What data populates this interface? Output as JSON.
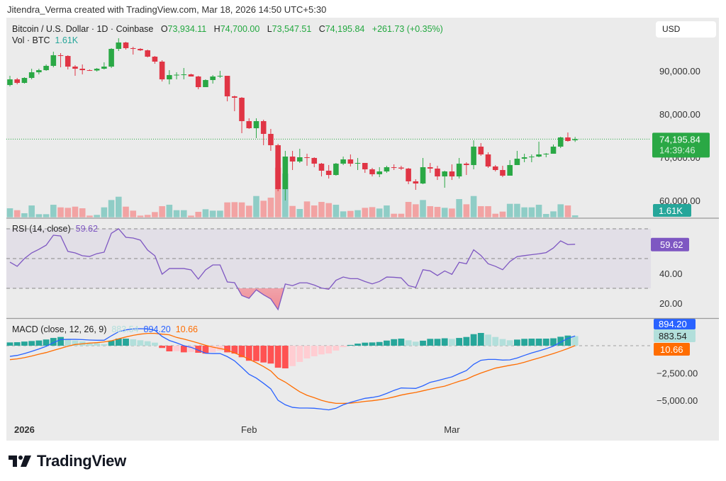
{
  "header": {
    "attribution": "Jitendra_Verma created with TradingView.com, Mar 18, 2026 14:50 UTC+5:30"
  },
  "legend": {
    "symbol": "Bitcoin / U.S. Dollar · 1D · Coinbase",
    "o_label": "O",
    "o": "73,934.11",
    "h_label": "H",
    "h": "74,700.00",
    "l_label": "L",
    "l": "73,547.51",
    "c_label": "C",
    "c": "74,195.84",
    "change": "+261.73 (+0.35%)",
    "vol_label": "Vol · BTC",
    "vol": "1.61K"
  },
  "currency_button": "USD",
  "footer": {
    "brand": "TradingView"
  },
  "colors": {
    "up": "#2aa845",
    "down": "#e03545",
    "vol_up": "#8fcdc6",
    "vol_down": "#f2a3a3",
    "rsi": "#7e57c2",
    "macd": "#2962ff",
    "signal": "#ff6d00",
    "hist_up_strong": "#26a69a",
    "hist_up_weak": "#b2dfdb",
    "hist_down_strong": "#ff5252",
    "hist_down_weak": "#ffcdd2",
    "vol_badge": "#26a69a"
  },
  "chart_data": [
    {
      "type": "candlestick",
      "interval": "1D",
      "x_start": "2025-12-30",
      "x_end": "2026-03-18",
      "x_ticks": [
        {
          "label": "2026",
          "date": "2026-01-01",
          "bold": true
        },
        {
          "label": "Feb",
          "date": "2026-02-01"
        },
        {
          "label": "Mar",
          "date": "2026-03-01"
        }
      ],
      "y_ticks": [
        {
          "value": 90000,
          "label": "90,000.00"
        },
        {
          "value": 80000,
          "label": "80,000.00"
        },
        {
          "value": 70000,
          "label": "70,000.00"
        },
        {
          "value": 60000,
          "label": "60,000.00"
        }
      ],
      "last_price": 74195.84,
      "last_price_label": "74,195.84",
      "countdown": "14:39:46",
      "volume_label": "1.61K",
      "ohlc": [
        [
          86720,
          88850,
          86390,
          88030
        ],
        [
          88030,
          88360,
          86880,
          87210
        ],
        [
          87210,
          88520,
          87050,
          88360
        ],
        [
          88360,
          90490,
          88030,
          89670
        ],
        [
          89670,
          90490,
          89180,
          90160
        ],
        [
          90160,
          91480,
          90000,
          91150
        ],
        [
          91150,
          94430,
          90820,
          93610
        ],
        [
          93610,
          94100,
          90820,
          93440
        ],
        [
          93440,
          93610,
          90330,
          90980
        ],
        [
          90980,
          91310,
          88850,
          90490
        ],
        [
          90490,
          91480,
          89180,
          90160
        ],
        [
          90160,
          90330,
          90000,
          90080
        ],
        [
          90080,
          90660,
          89840,
          90490
        ],
        [
          90490,
          91970,
          90330,
          90980
        ],
        [
          90980,
          95250,
          90660,
          95080
        ],
        [
          95080,
          97540,
          94590,
          96560
        ],
        [
          96560,
          96720,
          94920,
          95250
        ],
        [
          95250,
          95570,
          93770,
          95080
        ],
        [
          95080,
          95250,
          94590,
          94750
        ],
        [
          94750,
          94920,
          93110,
          93280
        ],
        [
          93280,
          93440,
          91640,
          92130
        ],
        [
          92130,
          92460,
          87540,
          88030
        ],
        [
          88030,
          90160,
          86880,
          89020
        ],
        [
          89020,
          89670,
          88030,
          89100
        ],
        [
          89100,
          90660,
          88030,
          89180
        ],
        [
          89180,
          89340,
          88690,
          88690
        ],
        [
          88690,
          88850,
          85740,
          86230
        ],
        [
          86230,
          88030,
          86230,
          87870
        ],
        [
          87870,
          89020,
          87050,
          88690
        ],
        [
          88690,
          90000,
          88360,
          88850
        ],
        [
          88850,
          88850,
          82950,
          84100
        ],
        [
          84100,
          84260,
          80660,
          83770
        ],
        [
          83770,
          83930,
          75570,
          78360
        ],
        [
          78360,
          79020,
          76560,
          76720
        ],
        [
          76720,
          79020,
          74430,
          78360
        ],
        [
          78360,
          78690,
          72790,
          75410
        ],
        [
          75410,
          76560,
          71480,
          72790
        ],
        [
          72790,
          73110,
          62130,
          62620
        ],
        [
          62620,
          71480,
          60000,
          70160
        ],
        [
          70160,
          71480,
          67050,
          69020
        ],
        [
          69020,
          71970,
          68690,
          70000
        ],
        [
          70000,
          70820,
          68030,
          69840
        ],
        [
          69840,
          70000,
          67700,
          68520
        ],
        [
          68520,
          68690,
          65570,
          66890
        ],
        [
          66890,
          68200,
          65080,
          65900
        ],
        [
          65900,
          68690,
          65740,
          68520
        ],
        [
          68520,
          70160,
          68200,
          69510
        ],
        [
          69510,
          70660,
          67870,
          68520
        ],
        [
          68520,
          69840,
          67050,
          68690
        ],
        [
          68690,
          68690,
          66390,
          67210
        ],
        [
          67210,
          67540,
          65570,
          66070
        ],
        [
          66070,
          67700,
          65410,
          66720
        ],
        [
          66720,
          68030,
          66390,
          67700
        ],
        [
          67700,
          68360,
          67050,
          67620
        ],
        [
          67620,
          68030,
          67050,
          67380
        ],
        [
          67380,
          67540,
          63770,
          64430
        ],
        [
          64430,
          64920,
          62460,
          63930
        ],
        [
          63930,
          69840,
          63770,
          67700
        ],
        [
          67700,
          68690,
          66390,
          67380
        ],
        [
          67380,
          68030,
          64750,
          65570
        ],
        [
          65570,
          66890,
          62950,
          66720
        ],
        [
          66720,
          68360,
          64750,
          65570
        ],
        [
          65570,
          69840,
          65080,
          68520
        ],
        [
          68520,
          68850,
          65900,
          68200
        ],
        [
          68200,
          73930,
          67210,
          72460
        ],
        [
          72460,
          73280,
          70330,
          70660
        ],
        [
          70660,
          71150,
          67540,
          67870
        ],
        [
          67870,
          68200,
          66720,
          67050
        ],
        [
          67050,
          68030,
          65410,
          65740
        ],
        [
          65740,
          69340,
          65740,
          68200
        ],
        [
          68200,
          71480,
          68200,
          69670
        ],
        [
          69670,
          70820,
          68850,
          70000
        ],
        [
          70000,
          70660,
          68850,
          70160
        ],
        [
          70160,
          73610,
          70000,
          70660
        ],
        [
          70660,
          70980,
          70000,
          70820
        ],
        [
          70820,
          72950,
          70820,
          72460
        ],
        [
          72460,
          74750,
          72130,
          74590
        ],
        [
          74590,
          75740,
          73610,
          73770
        ],
        [
          73934.11,
          74700,
          73547.51,
          74195.84
        ]
      ],
      "volume_k": [
        7.6,
        6.0,
        3.4,
        10.0,
        2.6,
        2.6,
        10.6,
        8.4,
        8.0,
        9.0,
        7.6,
        1.4,
        2.0,
        8.4,
        14.6,
        17.4,
        9.0,
        5.6,
        1.4,
        2.0,
        4.4,
        9.4,
        10.6,
        6.0,
        6.0,
        1.4,
        4.6,
        6.8,
        5.6,
        5.6,
        12.6,
        12.8,
        12.6,
        9.8,
        18.0,
        14.0,
        16.6,
        42.0,
        37.0,
        9.6,
        7.0,
        13.4,
        10.0,
        13.0,
        12.0,
        10.6,
        5.0,
        5.4,
        6.0,
        8.0,
        8.6,
        7.4,
        10.0,
        3.0,
        3.0,
        13.0,
        11.0,
        14.6,
        9.4,
        8.8,
        8.0,
        7.4,
        15.4,
        11.0,
        18.0,
        9.4,
        9.4,
        3.0,
        4.8,
        11.4,
        11.4,
        8.4,
        8.4,
        10.6,
        2.8,
        5.0,
        11.0,
        10.0,
        1.61
      ]
    },
    {
      "type": "line",
      "title": "RSI (14, close)",
      "last_label": "59.62",
      "levels": [
        70,
        50,
        30
      ],
      "y_ticks": [
        {
          "value": 40,
          "label": "40.00"
        },
        {
          "value": 20,
          "label": "20.00"
        }
      ],
      "values": [
        47.6,
        44.8,
        50,
        53.8,
        56.2,
        59,
        65.7,
        65.2,
        54.8,
        53.8,
        51.9,
        51.4,
        53.3,
        54.3,
        67,
        70,
        64.3,
        63.8,
        62.4,
        55.7,
        51.9,
        39.5,
        43.3,
        43.3,
        43.3,
        42.4,
        36.2,
        42.4,
        45.7,
        45.7,
        34.3,
        33.8,
        25.2,
        23.3,
        29,
        25.7,
        22.9,
        15.7,
        32.9,
        31.8,
        33.7,
        33.7,
        32.2,
        30.2,
        29.4,
        35.4,
        37.6,
        36.5,
        36.5,
        34.6,
        33,
        34.6,
        37.6,
        37.4,
        37,
        31.8,
        30.6,
        42.5,
        41.7,
        38.6,
        41.7,
        39.4,
        47.5,
        46.5,
        55.9,
        52.1,
        46.5,
        44.8,
        42.5,
        48,
        51.3,
        52,
        52.6,
        53.2,
        54,
        57.1,
        61.9,
        59.4,
        59.62
      ]
    },
    {
      "type": "line+bar",
      "title": "MACD (close, 12, 26, 9)",
      "histogram_label": "883.54",
      "macd_label": "894.20",
      "signal_label": "10.66",
      "y_ticks": [
        {
          "value": -2500,
          "label": "−2,500.00"
        },
        {
          "value": -5000,
          "label": "−5,000.00"
        }
      ],
      "macd": [
        -980,
        -890,
        -720,
        -520,
        -300,
        -60,
        280,
        560,
        580,
        580,
        560,
        520,
        500,
        500,
        910,
        1280,
        1450,
        1540,
        1560,
        1540,
        1410,
        850,
        480,
        260,
        0,
        -150,
        -410,
        -690,
        -720,
        -720,
        -1000,
        -1390,
        -1990,
        -2620,
        -2970,
        -3450,
        -3960,
        -5010,
        -5420,
        -5660,
        -5720,
        -5720,
        -5740,
        -5810,
        -5890,
        -5740,
        -5420,
        -5200,
        -5010,
        -4830,
        -4750,
        -4620,
        -4380,
        -4100,
        -3880,
        -3900,
        -3920,
        -3680,
        -3360,
        -3210,
        -3030,
        -2860,
        -2560,
        -2280,
        -1710,
        -1340,
        -1260,
        -1260,
        -1320,
        -1300,
        -1130,
        -890,
        -670,
        -480,
        -280,
        -40,
        320,
        670,
        894.2
      ],
      "signal": [
        -1280,
        -1210,
        -1100,
        -950,
        -780,
        -630,
        -430,
        -240,
        -50,
        110,
        170,
        240,
        280,
        350,
        450,
        630,
        800,
        950,
        1060,
        1130,
        1130,
        1060,
        1000,
        760,
        610,
        430,
        240,
        40,
        -130,
        -260,
        -390,
        -670,
        -930,
        -1240,
        -1560,
        -1910,
        -2320,
        -2990,
        -3340,
        -3790,
        -4230,
        -4550,
        -4770,
        -5010,
        -5180,
        -5290,
        -5290,
        -5270,
        -5200,
        -5110,
        -5050,
        -4960,
        -4850,
        -4700,
        -4530,
        -4400,
        -4290,
        -4140,
        -3990,
        -3840,
        -3710,
        -3490,
        -3270,
        -3080,
        -2770,
        -2510,
        -2280,
        -2060,
        -1930,
        -1800,
        -1690,
        -1520,
        -1320,
        -1130,
        -930,
        -720,
        -500,
        -260,
        10.66
      ]
    }
  ]
}
